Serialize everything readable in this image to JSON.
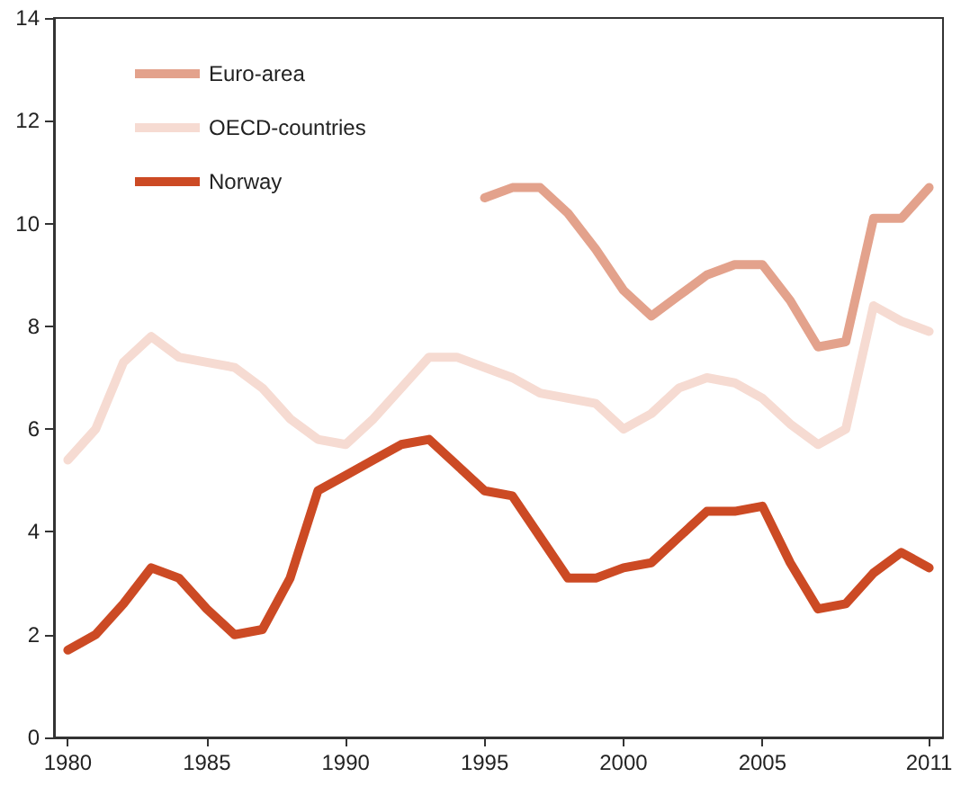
{
  "chart_data": {
    "type": "line",
    "x": [
      1980,
      1981,
      1982,
      1983,
      1984,
      1985,
      1986,
      1987,
      1988,
      1989,
      1990,
      1991,
      1992,
      1993,
      1994,
      1995,
      1996,
      1997,
      1998,
      1999,
      2000,
      2001,
      2002,
      2003,
      2004,
      2005,
      2006,
      2007,
      2008,
      2009,
      2010,
      2011
    ],
    "series": [
      {
        "name": "Euro-area",
        "color": "#e3a28c",
        "values": [
          null,
          null,
          null,
          null,
          null,
          null,
          null,
          null,
          null,
          null,
          null,
          null,
          null,
          null,
          null,
          10.5,
          10.7,
          10.7,
          10.2,
          9.5,
          8.7,
          8.2,
          8.6,
          9.0,
          9.2,
          9.2,
          8.5,
          7.6,
          7.7,
          10.1,
          10.1,
          10.7
        ]
      },
      {
        "name": "OECD-countries",
        "color": "#f6dbd2",
        "values": [
          5.4,
          6.0,
          7.3,
          7.8,
          7.4,
          7.3,
          7.2,
          6.8,
          6.2,
          5.8,
          5.7,
          6.2,
          6.8,
          7.4,
          7.4,
          7.2,
          7.0,
          6.7,
          6.6,
          6.5,
          6.0,
          6.3,
          6.8,
          7.0,
          6.9,
          6.6,
          6.1,
          5.7,
          6.0,
          8.4,
          8.1,
          7.9
        ]
      },
      {
        "name": "Norway",
        "color": "#cc4a24",
        "values": [
          1.7,
          2.0,
          2.6,
          3.3,
          3.1,
          2.5,
          2.0,
          2.1,
          3.1,
          4.8,
          5.1,
          5.4,
          5.7,
          5.8,
          5.3,
          4.8,
          4.7,
          3.9,
          3.1,
          3.1,
          3.3,
          3.4,
          3.9,
          4.4,
          4.4,
          4.5,
          3.4,
          2.5,
          2.6,
          3.2,
          3.6,
          3.3
        ]
      }
    ],
    "xlim": [
      1979.5,
      2011.5
    ],
    "xticks": [
      1980,
      1985,
      1990,
      1995,
      2000,
      2005,
      2011
    ],
    "ylim": [
      0,
      14
    ],
    "yticks": [
      0,
      2,
      4,
      6,
      8,
      10,
      12,
      14
    ],
    "grid": false,
    "legend": "top left",
    "marker": "none",
    "line_style": "solid"
  }
}
